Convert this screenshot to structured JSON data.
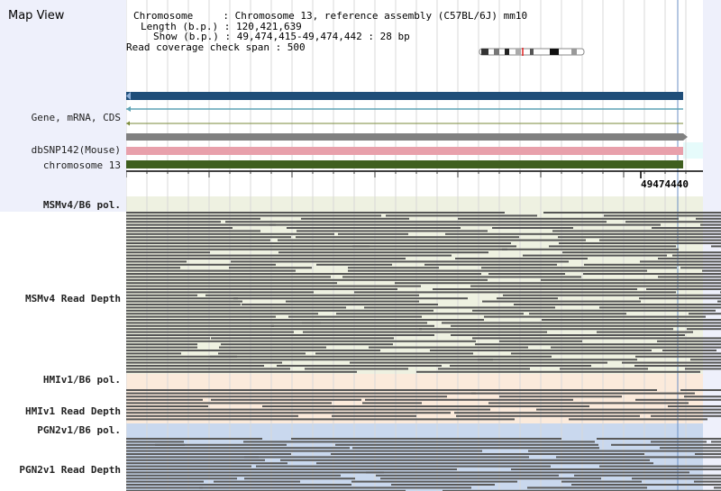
{
  "header": {
    "title": "Map View",
    "chromosome_line": "Chromosome     : Chromosome 13, reference assembly (C57BL/6J) mm10",
    "length_line": "Length (b.p.) : 120,421,639",
    "show_line": "Show (b.p.) : 49,474,415-49,474,442 : 28 bp",
    "coverage_line": "Read coverage check span : 500"
  },
  "tracks": {
    "gene_label": "Gene, mRNA, CDS",
    "snp_label": "dbSNP142(Mouse)",
    "chromosome_label": "chromosome 13",
    "position_marker": "49474440",
    "msm_pol_label": "MSMv4/B6 pol.",
    "msm_depth_label": "MSMv4 Read Depth",
    "hmi_pol_label": "HMIv1/B6 pol.",
    "hmi_depth_label": "HMIv1 Read Depth",
    "pgn_pol_label": "PGN2v1/B6 pol.",
    "pgn_depth_label": "PGN2v1 Read Depth"
  },
  "colors": {
    "gene_bar": "#1f4e79",
    "snp_bar": "#e8a0ab",
    "chromosome_bar": "#3f5f1f",
    "msm_bg": "#eef1e1",
    "hmi_bg": "#fbeadb",
    "pgn_bg": "#c9d8ee",
    "read": "#555555"
  }
}
